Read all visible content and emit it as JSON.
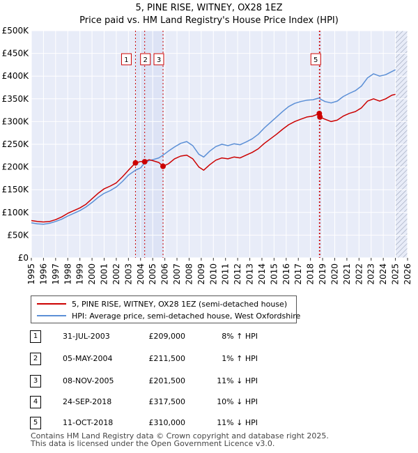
{
  "chart_data": {
    "type": "line",
    "title": "5, PINE RISE, WITNEY, OX28 1EZ",
    "subtitle": "Price paid vs. HM Land Registry's House Price Index (HPI)",
    "xlabel": "",
    "ylabel": "",
    "xlim": [
      1995,
      2026
    ],
    "ylim": [
      0,
      500000
    ],
    "x_ticks": [
      "1995",
      "1996",
      "1997",
      "1998",
      "1999",
      "2000",
      "2001",
      "2002",
      "2003",
      "2004",
      "2005",
      "2006",
      "2007",
      "2008",
      "2009",
      "2010",
      "2011",
      "2012",
      "2013",
      "2014",
      "2015",
      "2016",
      "2017",
      "2018",
      "2019",
      "2020",
      "2021",
      "2022",
      "2023",
      "2024",
      "2025",
      "2026"
    ],
    "y_ticks": [
      {
        "value": 0,
        "label": "£0"
      },
      {
        "value": 50000,
        "label": "£50K"
      },
      {
        "value": 100000,
        "label": "£100K"
      },
      {
        "value": 150000,
        "label": "£150K"
      },
      {
        "value": 200000,
        "label": "£200K"
      },
      {
        "value": 250000,
        "label": "£250K"
      },
      {
        "value": 300000,
        "label": "£300K"
      },
      {
        "value": 350000,
        "label": "£350K"
      },
      {
        "value": 400000,
        "label": "£400K"
      },
      {
        "value": 450000,
        "label": "£450K"
      },
      {
        "value": 500000,
        "label": "£500K"
      }
    ],
    "grid": true,
    "shaded_ranges": [
      [
        2003.58,
        2005.85
      ],
      [
        2018.73,
        2018.78
      ]
    ],
    "hatched_range": [
      2025.0,
      2026.0
    ],
    "series": [
      {
        "name": "5, PINE RISE, WITNEY, OX28 1EZ (semi-detached house)",
        "color": "#cc0000",
        "points": [
          [
            1995.0,
            82000
          ],
          [
            1995.5,
            80000
          ],
          [
            1996.0,
            79000
          ],
          [
            1996.5,
            80000
          ],
          [
            1997.0,
            84000
          ],
          [
            1997.5,
            90000
          ],
          [
            1998.0,
            98000
          ],
          [
            1998.5,
            104000
          ],
          [
            1999.0,
            110000
          ],
          [
            1999.5,
            118000
          ],
          [
            2000.0,
            130000
          ],
          [
            2000.5,
            142000
          ],
          [
            2001.0,
            152000
          ],
          [
            2001.5,
            158000
          ],
          [
            2002.0,
            165000
          ],
          [
            2002.5,
            178000
          ],
          [
            2003.0,
            193000
          ],
          [
            2003.58,
            209000
          ],
          [
            2004.0,
            212000
          ],
          [
            2004.34,
            211500
          ],
          [
            2004.7,
            216000
          ],
          [
            2005.0,
            214000
          ],
          [
            2005.5,
            210000
          ],
          [
            2005.85,
            201500
          ],
          [
            2006.3,
            207000
          ],
          [
            2006.8,
            218000
          ],
          [
            2007.3,
            224000
          ],
          [
            2007.8,
            226000
          ],
          [
            2008.3,
            218000
          ],
          [
            2008.8,
            200000
          ],
          [
            2009.2,
            193000
          ],
          [
            2009.7,
            205000
          ],
          [
            2010.2,
            215000
          ],
          [
            2010.7,
            220000
          ],
          [
            2011.2,
            218000
          ],
          [
            2011.7,
            222000
          ],
          [
            2012.2,
            220000
          ],
          [
            2012.7,
            226000
          ],
          [
            2013.2,
            232000
          ],
          [
            2013.7,
            240000
          ],
          [
            2014.2,
            252000
          ],
          [
            2014.7,
            262000
          ],
          [
            2015.2,
            272000
          ],
          [
            2015.7,
            283000
          ],
          [
            2016.2,
            293000
          ],
          [
            2016.7,
            300000
          ],
          [
            2017.2,
            305000
          ],
          [
            2017.7,
            310000
          ],
          [
            2018.2,
            312000
          ],
          [
            2018.73,
            317500
          ],
          [
            2018.78,
            310000
          ],
          [
            2019.2,
            305000
          ],
          [
            2019.7,
            300000
          ],
          [
            2020.2,
            303000
          ],
          [
            2020.7,
            312000
          ],
          [
            2021.2,
            318000
          ],
          [
            2021.7,
            322000
          ],
          [
            2022.2,
            330000
          ],
          [
            2022.7,
            345000
          ],
          [
            2023.2,
            350000
          ],
          [
            2023.7,
            345000
          ],
          [
            2024.2,
            350000
          ],
          [
            2024.7,
            358000
          ],
          [
            2025.0,
            360000
          ]
        ]
      },
      {
        "name": "HPI: Average price, semi-detached house, West Oxfordshire",
        "color": "#5b8fd6",
        "points": [
          [
            1995.0,
            77000
          ],
          [
            1995.5,
            75000
          ],
          [
            1996.0,
            74000
          ],
          [
            1996.5,
            76000
          ],
          [
            1997.0,
            80000
          ],
          [
            1997.5,
            85000
          ],
          [
            1998.0,
            92000
          ],
          [
            1998.5,
            98000
          ],
          [
            1999.0,
            104000
          ],
          [
            1999.5,
            112000
          ],
          [
            2000.0,
            122000
          ],
          [
            2000.5,
            133000
          ],
          [
            2001.0,
            142000
          ],
          [
            2001.5,
            148000
          ],
          [
            2002.0,
            156000
          ],
          [
            2002.5,
            168000
          ],
          [
            2003.0,
            182000
          ],
          [
            2003.58,
            193000
          ],
          [
            2004.0,
            198000
          ],
          [
            2004.34,
            209000
          ],
          [
            2004.7,
            214000
          ],
          [
            2005.0,
            216000
          ],
          [
            2005.5,
            220000
          ],
          [
            2005.85,
            226000
          ],
          [
            2006.3,
            235000
          ],
          [
            2006.8,
            244000
          ],
          [
            2007.3,
            252000
          ],
          [
            2007.8,
            256000
          ],
          [
            2008.3,
            247000
          ],
          [
            2008.8,
            228000
          ],
          [
            2009.2,
            222000
          ],
          [
            2009.7,
            235000
          ],
          [
            2010.2,
            245000
          ],
          [
            2010.7,
            250000
          ],
          [
            2011.2,
            247000
          ],
          [
            2011.7,
            251000
          ],
          [
            2012.2,
            249000
          ],
          [
            2012.7,
            255000
          ],
          [
            2013.2,
            262000
          ],
          [
            2013.7,
            272000
          ],
          [
            2014.2,
            286000
          ],
          [
            2014.7,
            298000
          ],
          [
            2015.2,
            310000
          ],
          [
            2015.7,
            322000
          ],
          [
            2016.2,
            333000
          ],
          [
            2016.7,
            340000
          ],
          [
            2017.2,
            344000
          ],
          [
            2017.7,
            347000
          ],
          [
            2018.2,
            348000
          ],
          [
            2018.73,
            352000
          ],
          [
            2018.78,
            350000
          ],
          [
            2019.2,
            344000
          ],
          [
            2019.7,
            341000
          ],
          [
            2020.2,
            345000
          ],
          [
            2020.7,
            355000
          ],
          [
            2021.2,
            362000
          ],
          [
            2021.7,
            368000
          ],
          [
            2022.2,
            378000
          ],
          [
            2022.7,
            396000
          ],
          [
            2023.2,
            405000
          ],
          [
            2023.7,
            400000
          ],
          [
            2024.2,
            403000
          ],
          [
            2024.7,
            410000
          ],
          [
            2025.0,
            414000
          ]
        ]
      }
    ],
    "sales": [
      {
        "label": "1",
        "x": 2003.58,
        "price": 209000
      },
      {
        "label": "2",
        "x": 2004.34,
        "price": 211500
      },
      {
        "label": "3",
        "x": 2005.85,
        "price": 201500
      },
      {
        "label": "4",
        "x": 2018.73,
        "price": 317500
      },
      {
        "label": "5",
        "x": 2018.78,
        "price": 310000
      }
    ],
    "marker_labels": [
      "1",
      "2",
      "3",
      "5"
    ]
  },
  "legend": {
    "red_label": "5, PINE RISE, WITNEY, OX28 1EZ (semi-detached house)",
    "blue_label": "HPI: Average price, semi-detached house, West Oxfordshire"
  },
  "table": {
    "rows": [
      {
        "num": "1",
        "date": "31-JUL-2003",
        "price": "£209,000",
        "hpi": "8% ↑ HPI"
      },
      {
        "num": "2",
        "date": "05-MAY-2004",
        "price": "£211,500",
        "hpi": "1% ↑ HPI"
      },
      {
        "num": "3",
        "date": "08-NOV-2005",
        "price": "£201,500",
        "hpi": "11% ↓ HPI"
      },
      {
        "num": "4",
        "date": "24-SEP-2018",
        "price": "£317,500",
        "hpi": "10% ↓ HPI"
      },
      {
        "num": "5",
        "date": "11-OCT-2018",
        "price": "£310,000",
        "hpi": "11% ↓ HPI"
      }
    ]
  },
  "footer": {
    "line1": "Contains HM Land Registry data © Crown copyright and database right 2025.",
    "line2": "This data is licensed under the Open Government Licence v3.0."
  },
  "colors": {
    "red": "#cc0000",
    "blue": "#5b8fd6",
    "plot_bg": "#e8ecf8",
    "shade": "#dde3f5"
  }
}
